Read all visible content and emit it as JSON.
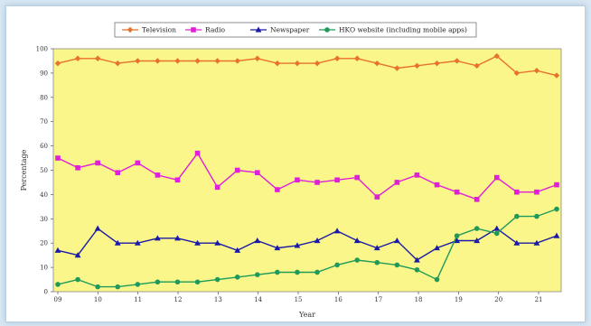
{
  "chart_data": {
    "type": "line",
    "xlabel": "Year",
    "ylabel": "Percentage",
    "ylim": [
      0,
      100
    ],
    "yticks": [
      0,
      10,
      20,
      30,
      40,
      50,
      60,
      70,
      80,
      90,
      100
    ],
    "x_tick_labels": [
      "09",
      "10",
      "11",
      "12",
      "13",
      "14",
      "15",
      "16",
      "17",
      "18",
      "19",
      "20",
      "21"
    ],
    "plot_background": "#faf68a",
    "grid": false,
    "legend_position": "top",
    "series": [
      {
        "name": "Television",
        "color": "#e8722a",
        "marker": "diamond",
        "values": [
          94,
          96,
          96,
          94,
          95,
          95,
          95,
          95,
          95,
          95,
          96,
          94,
          94,
          94,
          96,
          96,
          94,
          92,
          93,
          94,
          95,
          93,
          97,
          90,
          91,
          89
        ]
      },
      {
        "name": "Radio",
        "color": "#e020d8",
        "marker": "square",
        "values": [
          55,
          51,
          53,
          49,
          53,
          48,
          46,
          57,
          43,
          50,
          49,
          42,
          46,
          45,
          46,
          47,
          39,
          45,
          48,
          44,
          41,
          38,
          47,
          41,
          41,
          44
        ]
      },
      {
        "name": "Newspaper",
        "color": "#1a1aa8",
        "marker": "triangle",
        "values": [
          17,
          15,
          26,
          20,
          20,
          22,
          22,
          20,
          20,
          17,
          21,
          18,
          19,
          21,
          25,
          21,
          18,
          21,
          13,
          18,
          21,
          21,
          26,
          20,
          20,
          23
        ]
      },
      {
        "name": "HKO website (including mobile apps)",
        "color": "#1f9a5a",
        "marker": "circle",
        "values": [
          3,
          5,
          2,
          2,
          3,
          4,
          4,
          4,
          5,
          6,
          7,
          8,
          8,
          8,
          11,
          13,
          12,
          11,
          9,
          5,
          23,
          26,
          24,
          31,
          31,
          34
        ]
      }
    ]
  }
}
